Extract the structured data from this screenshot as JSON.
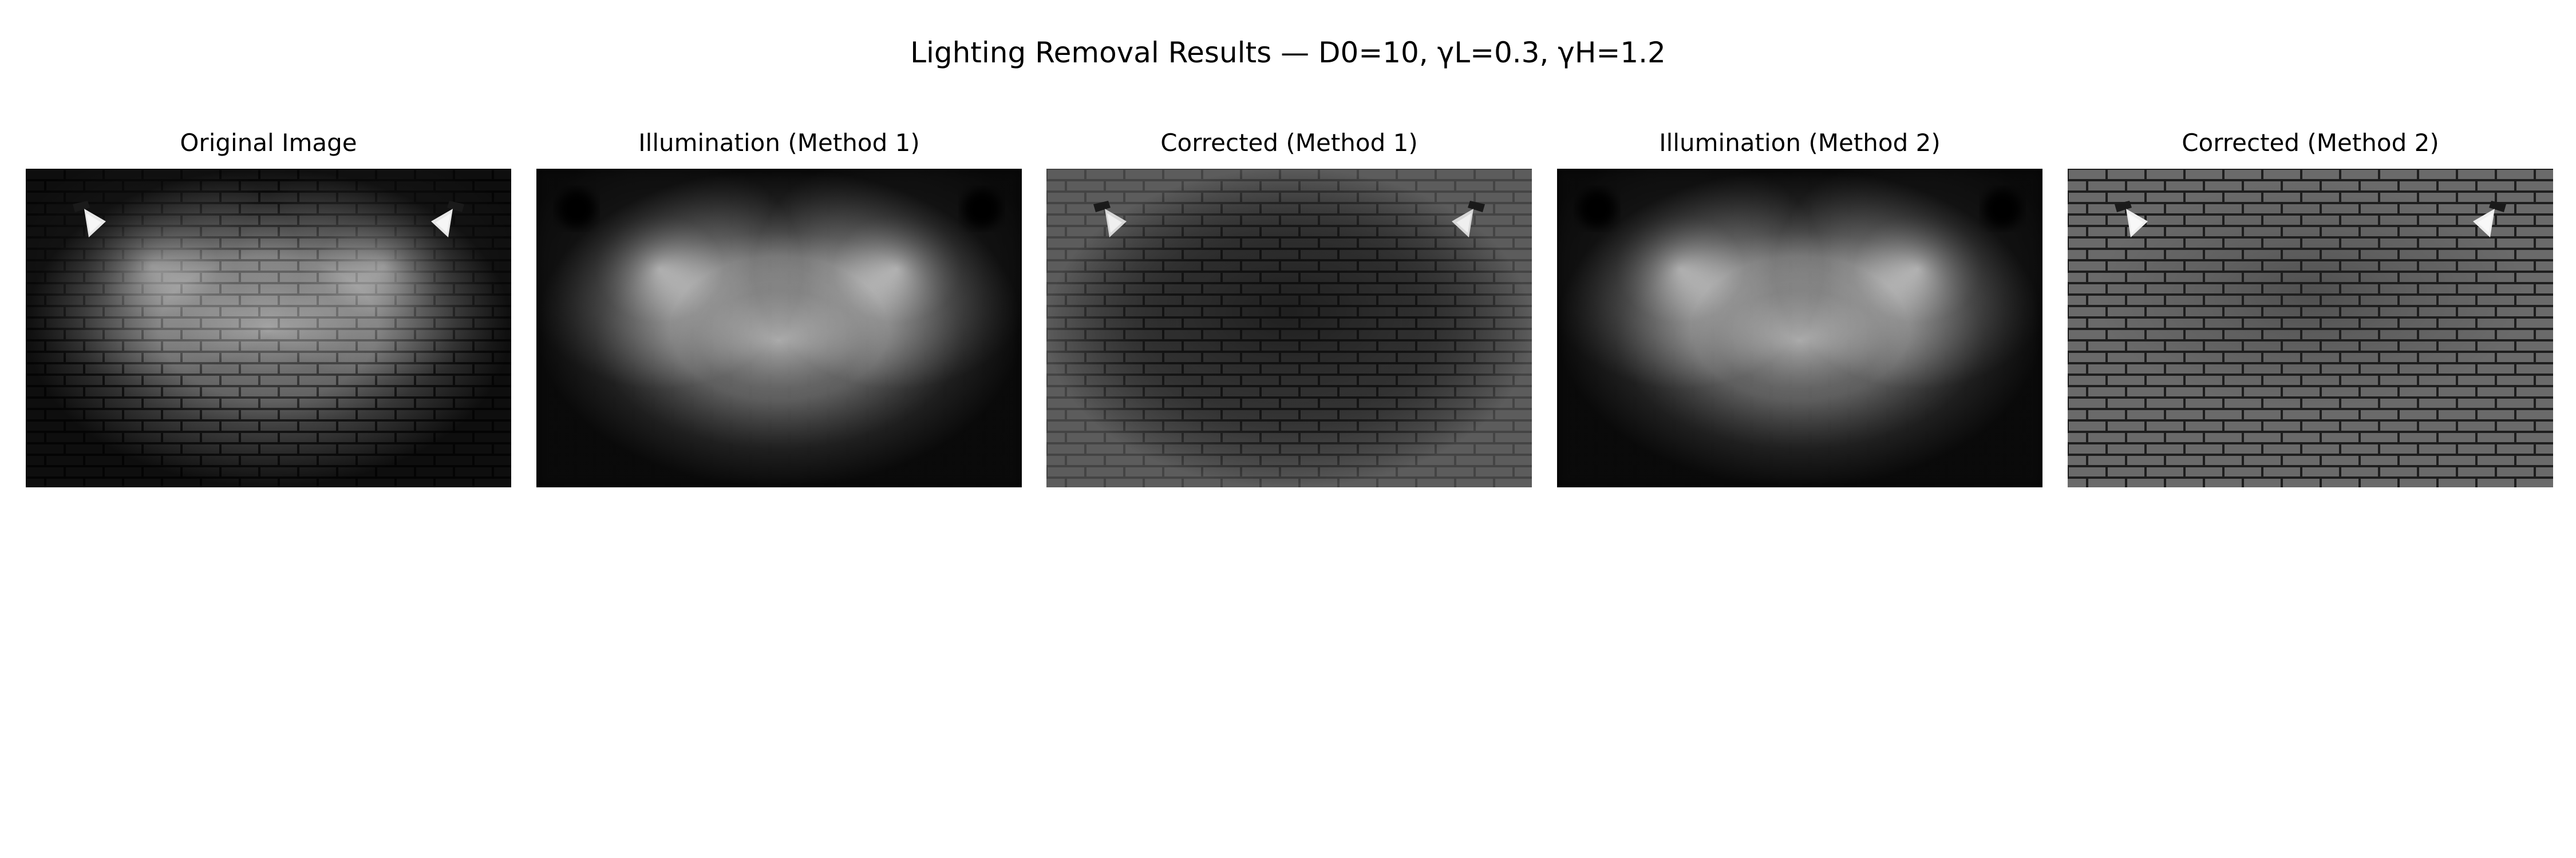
{
  "figure": {
    "title": "Lighting Removal Results — D0=10, γL=0.3, γH=1.2"
  },
  "panels": [
    {
      "title": "Original Image",
      "kind": "original"
    },
    {
      "title": "Illumination (Method 1)",
      "kind": "illumination"
    },
    {
      "title": "Corrected (Method 1)",
      "kind": "corrected-dark"
    },
    {
      "title": "Illumination (Method 2)",
      "kind": "illumination"
    },
    {
      "title": "Corrected (Method 2)",
      "kind": "corrected-flat"
    }
  ]
}
